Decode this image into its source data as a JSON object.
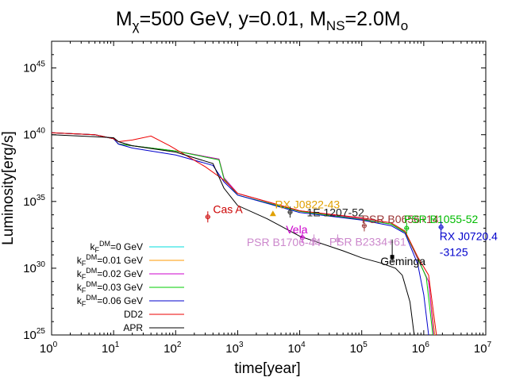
{
  "chart_data": {
    "type": "line",
    "title_parts": [
      {
        "text": "M"
      },
      {
        "text": "χ",
        "sub": true
      },
      {
        "text": "=500 GeV, y=0.01, M"
      },
      {
        "text": "NS",
        "sub": true
      },
      {
        "text": "=2.0M"
      },
      {
        "text": "o",
        "sub": true
      }
    ],
    "xlabel": "time[year]",
    "ylabel": "Luminosity[erg/s]",
    "x_scale": "log",
    "y_scale": "log",
    "xlim": [
      1,
      10000000
    ],
    "ylim": [
      1e+25,
      1e+47
    ],
    "grid": false,
    "legend_position": "bottom-left",
    "x_ticks": [
      {
        "base": "10",
        "exp": "0",
        "value": 1
      },
      {
        "base": "10",
        "exp": "1",
        "value": 10
      },
      {
        "base": "10",
        "exp": "2",
        "value": 100
      },
      {
        "base": "10",
        "exp": "3",
        "value": 1000
      },
      {
        "base": "10",
        "exp": "4",
        "value": 10000
      },
      {
        "base": "10",
        "exp": "5",
        "value": 100000
      },
      {
        "base": "10",
        "exp": "6",
        "value": 1000000
      },
      {
        "base": "10",
        "exp": "7",
        "value": 10000000
      }
    ],
    "y_ticks": [
      {
        "base": "10",
        "exp": "25",
        "value": 1e+25
      },
      {
        "base": "10",
        "exp": "30",
        "value": 1e+30
      },
      {
        "base": "10",
        "exp": "35",
        "value": 1e+35
      },
      {
        "base": "10",
        "exp": "40",
        "value": 1e+40
      },
      {
        "base": "10",
        "exp": "45",
        "value": 1e+45
      }
    ],
    "series": [
      {
        "name_base": "k",
        "name_sub": "F",
        "name_sup": "DM",
        "name_rest": "=0 GeV",
        "color": "#00dddd",
        "points": [
          [
            1,
            1.4e+40
          ],
          [
            5,
            1e+40
          ],
          [
            10,
            5e+39
          ],
          [
            12,
            2e+39
          ],
          [
            20,
            1.5e+39
          ],
          [
            100,
            6e+38
          ],
          [
            500,
            1.5e+38
          ],
          [
            600,
            6e+36
          ],
          [
            1000,
            4e+35
          ],
          [
            10000,
            2e+34
          ],
          [
            100000,
            5e+33
          ],
          [
            300000,
            2e+33
          ],
          [
            500000,
            5e+32
          ],
          [
            800000,
            5e+30
          ],
          [
            1200000,
            1e+29
          ],
          [
            1500000,
            1e+25
          ]
        ]
      },
      {
        "name_base": "k",
        "name_sub": "F",
        "name_sup": "DM",
        "name_rest": "=0.01 GeV",
        "color": "#ff9900",
        "points": [
          [
            1,
            1.4e+40
          ],
          [
            5,
            1e+40
          ],
          [
            10,
            5e+39
          ],
          [
            12,
            2e+39
          ],
          [
            20,
            1.5e+39
          ],
          [
            100,
            6e+38
          ],
          [
            500,
            1.5e+38
          ],
          [
            600,
            6e+36
          ],
          [
            1000,
            4e+35
          ],
          [
            10000,
            2e+34
          ],
          [
            100000,
            5e+33
          ],
          [
            300000,
            2e+33
          ],
          [
            500000,
            5e+32
          ],
          [
            800000,
            5e+30
          ],
          [
            1200000,
            1e+29
          ],
          [
            1500000,
            1e+25
          ]
        ]
      },
      {
        "name_base": "k",
        "name_sub": "F",
        "name_sup": "DM",
        "name_rest": "=0.02 GeV",
        "color": "#cc00cc",
        "points": [
          [
            1,
            1.4e+40
          ],
          [
            5,
            1e+40
          ],
          [
            10,
            5e+39
          ],
          [
            12,
            2e+39
          ],
          [
            20,
            1.5e+39
          ],
          [
            100,
            6e+38
          ],
          [
            500,
            1.5e+38
          ],
          [
            600,
            6e+36
          ],
          [
            1000,
            4e+35
          ],
          [
            10000,
            2e+34
          ],
          [
            100000,
            5e+33
          ],
          [
            300000,
            2e+33
          ],
          [
            500000,
            5e+32
          ],
          [
            800000,
            5e+30
          ],
          [
            1200000,
            1e+29
          ],
          [
            1450000,
            1e+25
          ]
        ]
      },
      {
        "name_base": "k",
        "name_sub": "F",
        "name_sup": "DM",
        "name_rest": "=0.03 GeV",
        "color": "#00cc00",
        "points": [
          [
            1,
            1.4e+40
          ],
          [
            5,
            1e+40
          ],
          [
            10,
            5e+39
          ],
          [
            12,
            2e+39
          ],
          [
            20,
            1.5e+39
          ],
          [
            100,
            6e+38
          ],
          [
            500,
            1.3e+38
          ],
          [
            600,
            5e+36
          ],
          [
            1000,
            3e+35
          ],
          [
            10000,
            1.8e+34
          ],
          [
            100000,
            4.5e+33
          ],
          [
            300000,
            2e+33
          ],
          [
            500000,
            5e+32
          ],
          [
            800000,
            6e+30
          ],
          [
            1100000,
            2e+29
          ],
          [
            1400000,
            1e+25
          ]
        ]
      },
      {
        "name_base": "k",
        "name_sub": "F",
        "name_sup": "DM",
        "name_rest": "=0.06 GeV",
        "color": "#0000cc",
        "points": [
          [
            1,
            1.4e+40
          ],
          [
            5,
            1e+40
          ],
          [
            10,
            5e+39
          ],
          [
            12,
            2e+39
          ],
          [
            20,
            1e+39
          ],
          [
            100,
            3e+38
          ],
          [
            400,
            5e+37
          ],
          [
            600,
            3e+36
          ],
          [
            1000,
            3e+35
          ],
          [
            10000,
            1.5e+34
          ],
          [
            100000,
            4e+33
          ],
          [
            300000,
            1.5e+33
          ],
          [
            500000,
            4e+32
          ],
          [
            800000,
            2e+30
          ],
          [
            1000000,
            1e+28
          ],
          [
            1200000,
            1e+25
          ]
        ]
      },
      {
        "name_base": "DD2",
        "color": "#ee0000",
        "points": [
          [
            1,
            1.4e+40
          ],
          [
            5,
            1e+40
          ],
          [
            10,
            5e+39
          ],
          [
            12,
            3e+39
          ],
          [
            20,
            4e+39
          ],
          [
            40,
            8e+39
          ],
          [
            80,
            1.5e+39
          ],
          [
            300,
            4e+37
          ],
          [
            600,
            4e+36
          ],
          [
            1000,
            4e+35
          ],
          [
            10000,
            2e+34
          ],
          [
            100000,
            6e+33
          ],
          [
            300000,
            2.5e+33
          ],
          [
            500000,
            6e+32
          ],
          [
            800000,
            7e+30
          ],
          [
            1200000,
            3e+29
          ],
          [
            1600000,
            1e+25
          ]
        ]
      },
      {
        "name_base": "APR",
        "color": "#000000",
        "points": [
          [
            1,
            1e+40
          ],
          [
            5,
            7e+39
          ],
          [
            10,
            6e+39
          ],
          [
            12,
            3e+39
          ],
          [
            20,
            1.5e+39
          ],
          [
            100,
            5e+38
          ],
          [
            400,
            7e+37
          ],
          [
            600,
            1e+36
          ],
          [
            1000,
            5e+34
          ],
          [
            3000,
            5e+33
          ],
          [
            10000,
            2.5e+32
          ],
          [
            50000,
            2e+31
          ],
          [
            100000,
            6e+30
          ],
          [
            200000,
            2.5e+30
          ],
          [
            350000,
            1e+30
          ],
          [
            450000,
            3e+29
          ],
          [
            600000,
            3e+27
          ],
          [
            700000,
            1e+25
          ]
        ]
      }
    ],
    "observations": [
      {
        "label": "Cas A",
        "color": "#cc0000",
        "t": 330,
        "L": 7e+33,
        "label_x": 400,
        "label_y": 1.3e+34
      },
      {
        "label": "RX J0822-43",
        "color": "#e0a000",
        "t": 3700,
        "L": 1.2e+34,
        "label_x": 4000,
        "label_y": 3e+34
      },
      {
        "label": "1E 1207-52",
        "color": "#222222",
        "t": 7000,
        "L": 1.6e+34,
        "label_x": 13000,
        "label_y": 8e+33
      },
      {
        "label": "Vela",
        "color": "#cc00cc",
        "t": 11000,
        "L": 2e+32,
        "label_x": 6000,
        "label_y": 4e+32
      },
      {
        "label": "PSR B1706-44",
        "color": "#cc88cc",
        "t": 17000,
        "L": 1.3e+32,
        "label_x": 1400,
        "label_y": 4.5e+31
      },
      {
        "label": "PSR B2334+61",
        "color": "#cc88cc",
        "t": 41000,
        "L": 1.3e+32,
        "label_x": 30000,
        "label_y": 5e+31
      },
      {
        "label": "PSR B0656+14",
        "color": "#993333",
        "t": 110000,
        "L": 1.5e+33,
        "label_x": 100000,
        "label_y": 2.5e+33
      },
      {
        "label": "PSR B1055-52",
        "color": "#00bb00",
        "t": 530000,
        "L": 1e+33,
        "label_x": 480000,
        "label_y": 2.4e+33
      },
      {
        "label": "Geminga",
        "color": "#000000",
        "t": 310000,
        "L": 7e+30,
        "label_x": 200000,
        "label_y": 1.7e+30
      },
      {
        "label": "RX J0720.4",
        "color": "#0000cc",
        "t": 1900000,
        "L": 1.2e+33,
        "label_x": 1800000,
        "label_y": 1.3e+32
      },
      {
        "label": "-3125",
        "color": "#0000cc",
        "t": null,
        "L": null,
        "label_x": 1800000,
        "label_y": 8e+30
      }
    ]
  }
}
